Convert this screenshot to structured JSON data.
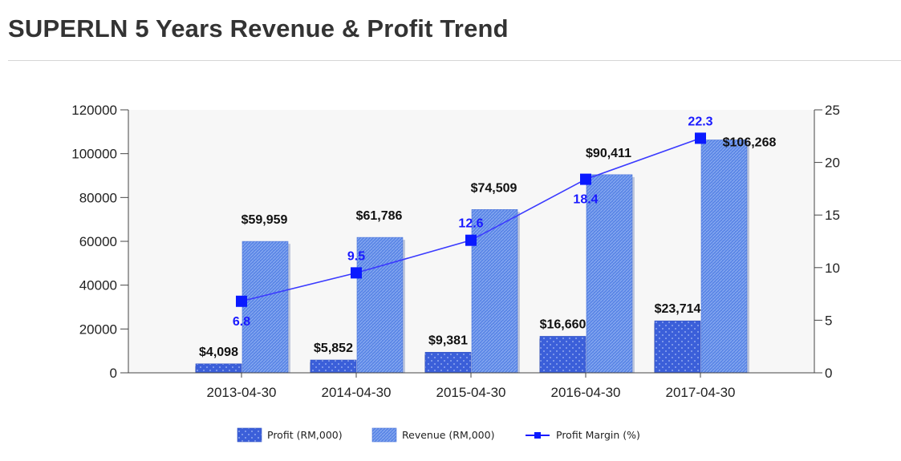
{
  "page": {
    "title": "SUPERLN 5 Years Revenue & Profit Trend"
  },
  "chart_data": {
    "type": "bar",
    "title": "SUPERLN 5 Years Revenue & Profit Trend",
    "categories": [
      "2013-04-30",
      "2014-04-30",
      "2015-04-30",
      "2016-04-30",
      "2017-04-30"
    ],
    "series": [
      {
        "name": "Profit (RM,000)",
        "type": "bar",
        "axis": "left",
        "values": [
          4098,
          5852,
          9381,
          16660,
          23714
        ],
        "labels": [
          "$4,098",
          "$5,852",
          "$9,381",
          "$16,660",
          "$23,714"
        ],
        "color": "#3b5fd9"
      },
      {
        "name": "Revenue (RM,000)",
        "type": "bar",
        "axis": "left",
        "values": [
          59959,
          61786,
          74509,
          90411,
          106268
        ],
        "labels": [
          "$59,959",
          "$61,786",
          "$74,509",
          "$90,411",
          "$106,268"
        ],
        "color": "#5b86e6"
      },
      {
        "name": "Profit Margin (%)",
        "type": "line",
        "axis": "right",
        "values": [
          6.8,
          9.5,
          12.6,
          18.4,
          22.3
        ],
        "labels": [
          "6.8",
          "9.5",
          "12.6",
          "18.4",
          "22.3"
        ],
        "color": "#1a1aff"
      }
    ],
    "y_left": {
      "ylim": [
        0,
        120000
      ],
      "ticks": [
        0,
        20000,
        40000,
        60000,
        80000,
        100000,
        120000
      ],
      "tick_labels": [
        "0",
        "20000",
        "40000",
        "60000",
        "80000",
        "100000",
        "120000"
      ]
    },
    "y_right": {
      "ylim": [
        0,
        25
      ],
      "ticks": [
        0,
        5,
        10,
        15,
        20,
        25
      ],
      "tick_labels": [
        "0",
        "5",
        "10",
        "15",
        "20",
        "25"
      ]
    },
    "xlabel": "",
    "ylabel": "",
    "grid": false,
    "legend": "bottom-center",
    "colors": {
      "plot_background": "#f7f7f7",
      "axis": "#444444",
      "text": "#222222"
    }
  }
}
